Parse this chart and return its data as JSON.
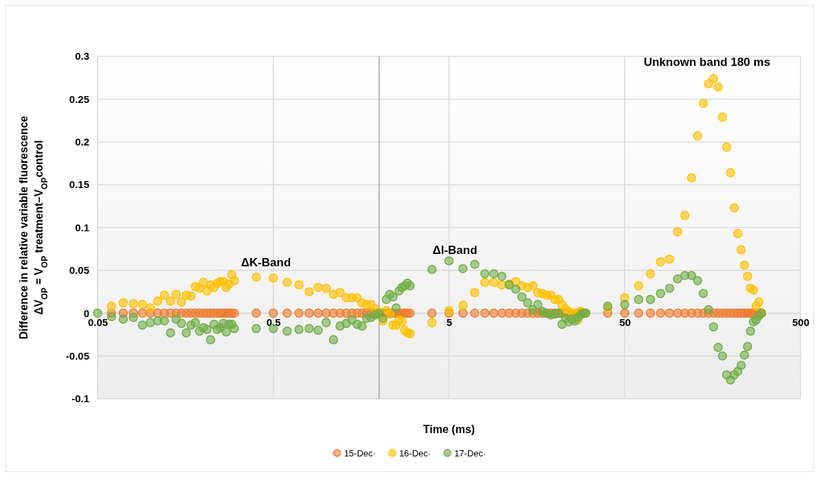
{
  "chart_data": {
    "type": "scatter",
    "xlabel": "Time (ms)",
    "ylabel": "Difference in relative variable fluorescence\nΔV$_{OP}$ = V$_{OP}$ treatment–V$_{OP}$control",
    "log": "x",
    "xlim": [
      0.05,
      500
    ],
    "xticks": [
      0.05,
      0.5,
      5,
      50,
      500
    ],
    "ylim": [
      -0.1,
      0.3
    ],
    "yticks": [
      -0.1,
      -0.05,
      0,
      0.05,
      0.1,
      0.15,
      0.2,
      0.25,
      0.3
    ],
    "grid": true,
    "legend": "bottom",
    "marker": "circle",
    "ref_lines": [
      {
        "axis": "x",
        "value": 2,
        "color": "#a6a6a6"
      }
    ],
    "annotations": [
      "ΔK-Band",
      "ΔI-Band",
      "Unknown band 180 ms"
    ],
    "x": [
      0.05,
      0.06,
      0.07,
      0.08,
      0.09,
      0.1,
      0.11,
      0.12,
      0.13,
      0.14,
      0.15,
      0.16,
      0.17,
      0.18,
      0.19,
      0.2,
      0.21,
      0.22,
      0.23,
      0.24,
      0.25,
      0.26,
      0.27,
      0.28,
      0.29,
      0.3,
      0.4,
      0.5,
      0.6,
      0.7,
      0.8,
      0.9,
      1,
      1.1,
      1.2,
      1.3,
      1.4,
      1.5,
      1.6,
      1.7,
      1.8,
      1.9,
      2,
      2.1,
      2.2,
      2.3,
      2.4,
      2.5,
      2.6,
      2.7,
      2.8,
      2.9,
      3,
      4,
      5,
      6,
      7,
      8,
      9,
      10,
      11,
      12,
      13,
      14,
      15,
      16,
      17,
      18,
      19,
      20,
      21,
      22,
      23,
      24,
      25,
      26,
      27,
      28,
      29,
      30,
      40,
      50,
      60,
      70,
      80,
      90,
      100,
      110,
      120,
      130,
      140,
      150,
      160,
      170,
      180,
      190,
      200,
      210,
      220,
      230,
      240,
      250,
      260,
      270,
      280,
      290,
      300
    ],
    "series": [
      {
        "name": "15-Dec·",
        "color": "#ed7d31",
        "values": [
          null,
          0,
          0,
          0,
          0,
          0,
          0,
          0,
          0,
          0,
          0,
          0,
          0,
          0,
          0,
          0,
          0,
          0,
          0,
          0,
          0,
          0,
          0,
          0,
          0,
          0,
          0,
          0,
          0,
          0,
          0,
          0,
          0,
          0,
          0,
          0,
          0,
          0,
          0,
          0,
          0,
          0,
          0,
          0,
          0,
          0,
          0,
          0,
          0,
          0,
          0,
          0,
          0,
          0,
          0,
          0,
          0,
          0,
          0,
          0,
          0,
          0,
          0,
          0,
          0,
          0,
          0,
          0,
          0,
          0,
          0,
          0,
          0,
          0,
          0,
          null,
          0,
          0,
          null,
          0,
          0,
          0,
          0,
          0,
          0,
          0,
          0,
          0,
          0,
          0,
          0,
          0,
          0,
          0,
          0,
          0,
          0,
          0,
          0,
          0,
          0,
          0,
          0,
          0,
          0,
          0,
          0
        ]
      },
      {
        "name": "16-Dec·",
        "color": "#ffc000",
        "values": [
          null,
          0.008,
          0.012,
          0.011,
          0.01,
          0.006,
          0.014,
          0.021,
          0.014,
          0.022,
          0.013,
          0.021,
          0.02,
          0.031,
          0.029,
          0.036,
          0.026,
          0.033,
          0.03,
          0.035,
          0.037,
          0.037,
          0.03,
          0.034,
          0.045,
          0.038,
          0.042,
          0.041,
          0.036,
          0.033,
          0.025,
          0.03,
          0.029,
          0.022,
          0.024,
          0.018,
          0.018,
          0.018,
          0.012,
          0.01,
          0.01,
          0.005,
          0.001,
          -0.009,
          0.003,
          -0.001,
          -0.014,
          -0.014,
          -0.008,
          -0.01,
          -0.02,
          -0.023,
          -0.024,
          -0.011,
          0.003,
          0.009,
          0.024,
          0.036,
          0.036,
          0.033,
          0.034,
          0.037,
          0.032,
          0.03,
          0.032,
          0.024,
          0.023,
          0.021,
          0.021,
          0.016,
          0.016,
          0.01,
          0.005,
          0.002,
          0,
          0,
          -0.008,
          0.002,
          null,
          0,
          0.006,
          0.018,
          0.032,
          0.046,
          0.06,
          0.063,
          0.095,
          0.114,
          0.158,
          0.207,
          0.245,
          0.268,
          0.274,
          0.264,
          0.229,
          0.194,
          0.164,
          0.123,
          0.093,
          0.074,
          0.056,
          0.043,
          0.029,
          0.027,
          0.008,
          0.013,
          0
        ]
      },
      {
        "name": "17-Dec·",
        "color": "#70ad47",
        "values": [
          0,
          -0.004,
          -0.007,
          -0.005,
          -0.014,
          -0.011,
          -0.009,
          -0.009,
          -0.023,
          -0.007,
          -0.012,
          -0.023,
          -0.014,
          -0.011,
          -0.021,
          -0.017,
          -0.019,
          -0.031,
          -0.013,
          -0.019,
          -0.017,
          -0.012,
          -0.022,
          -0.013,
          -0.013,
          -0.018,
          -0.018,
          -0.018,
          -0.021,
          -0.019,
          -0.018,
          -0.02,
          -0.011,
          -0.031,
          -0.015,
          -0.012,
          -0.008,
          -0.013,
          -0.015,
          -0.006,
          -0.005,
          -0.002,
          0,
          -0.006,
          0.016,
          0.022,
          0.019,
          0.006,
          0.026,
          0.03,
          0.032,
          0.035,
          0.032,
          0.051,
          0.061,
          0.052,
          0.057,
          0.046,
          0.046,
          0.043,
          0.033,
          0.028,
          0.019,
          0.012,
          0.004,
          0.01,
          0.002,
          0,
          -0.002,
          -0.001,
          0,
          -0.013,
          -0.006,
          -0.01,
          -0.007,
          -0.009,
          -0.005,
          -0.002,
          0,
          0,
          0.008,
          0.01,
          0.016,
          0.016,
          0.023,
          0.029,
          0.04,
          0.044,
          0.044,
          0.038,
          0.023,
          0.004,
          -0.016,
          -0.04,
          -0.05,
          -0.072,
          -0.078,
          -0.072,
          -0.068,
          -0.061,
          -0.049,
          -0.039,
          -0.021,
          -0.01,
          -0.008,
          -0.003,
          0
        ]
      }
    ]
  }
}
